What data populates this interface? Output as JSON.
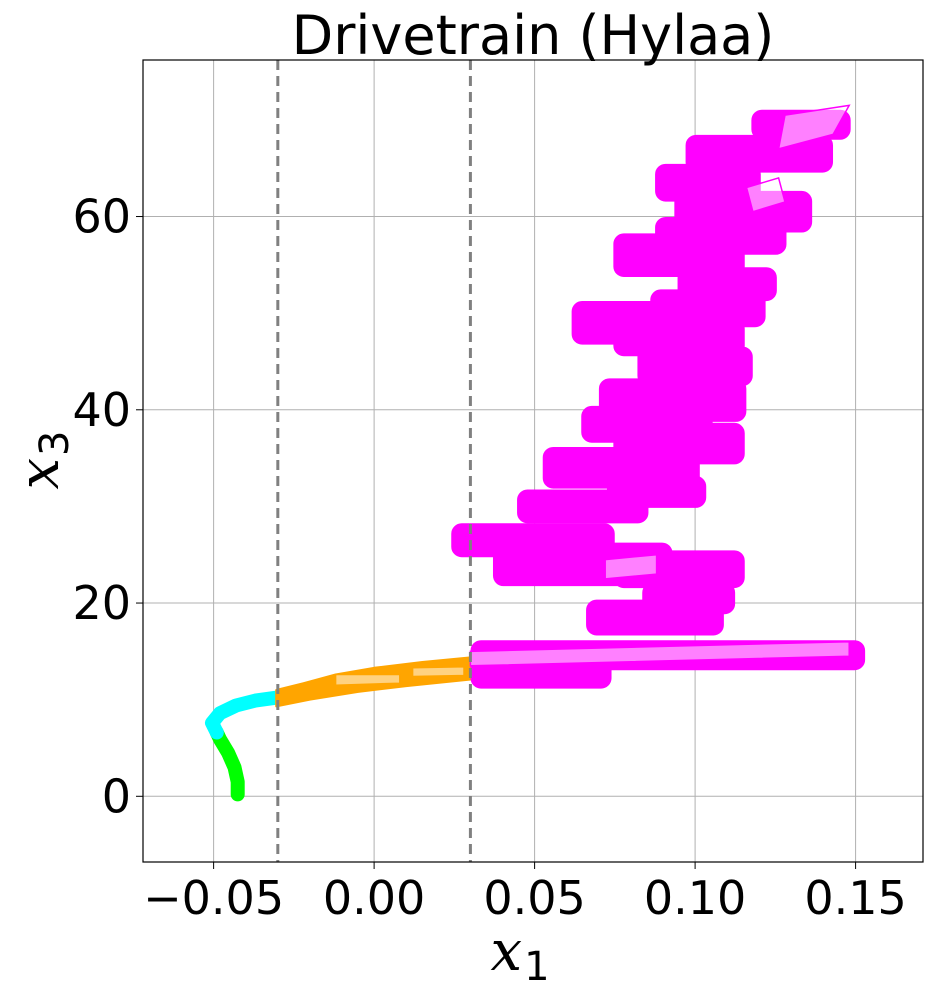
{
  "chart_data": {
    "type": "area",
    "title": "Drivetrain (Hylaa)",
    "xlabel": "x",
    "xlabel_sub": "1",
    "ylabel": "x",
    "ylabel_sub": "3",
    "xlim": [
      -0.072,
      0.171
    ],
    "ylim": [
      -6.8,
      76.2
    ],
    "grid": true,
    "x_ticks": [
      {
        "value": -0.05,
        "label": "−0.05"
      },
      {
        "value": 0.0,
        "label": "0.00"
      },
      {
        "value": 0.05,
        "label": "0.05"
      },
      {
        "value": 0.1,
        "label": "0.10"
      },
      {
        "value": 0.15,
        "label": "0.15"
      }
    ],
    "y_ticks": [
      {
        "value": 0,
        "label": "0"
      },
      {
        "value": 20,
        "label": "20"
      },
      {
        "value": 40,
        "label": "40"
      },
      {
        "value": 60,
        "label": "60"
      }
    ],
    "guard_lines": [
      -0.03,
      0.03
    ],
    "colors": {
      "mode1": "#00ff00",
      "mode2": "#00ffff",
      "mode3": "#ffa500",
      "mode4": "#ff00ff",
      "guard": "#808080"
    },
    "series": [
      {
        "mode": "mode1",
        "path": [
          [
            -0.0425,
            0.2
          ],
          [
            -0.0425,
            1.5
          ],
          [
            -0.0435,
            3.0
          ],
          [
            -0.0455,
            4.5
          ],
          [
            -0.048,
            5.9
          ],
          [
            -0.049,
            6.6
          ]
        ]
      },
      {
        "mode": "mode2",
        "path": [
          [
            -0.049,
            6.6
          ],
          [
            -0.0505,
            7.6
          ],
          [
            -0.048,
            8.6
          ],
          [
            -0.043,
            9.4
          ],
          [
            -0.037,
            9.9
          ],
          [
            -0.0305,
            10.2
          ]
        ]
      },
      {
        "mode": "mode3",
        "poly": [
          [
            -0.0305,
            9.3
          ],
          [
            -0.02,
            10.0
          ],
          [
            -0.005,
            10.8
          ],
          [
            0.01,
            11.4
          ],
          [
            0.0305,
            12.1
          ],
          [
            0.0305,
            14.4
          ],
          [
            0.015,
            13.9
          ],
          [
            0.0,
            13.3
          ],
          [
            -0.012,
            12.6
          ],
          [
            -0.022,
            11.7
          ],
          [
            -0.0305,
            11.0
          ]
        ],
        "highlights": [
          [
            [
              -0.012,
              11.5
            ],
            [
              0.008,
              11.7
            ],
            [
              0.008,
              12.6
            ],
            [
              -0.012,
              12.6
            ]
          ],
          [
            [
              0.012,
              12.4
            ],
            [
              0.028,
              12.5
            ],
            [
              0.028,
              13.4
            ],
            [
              0.012,
              13.3
            ]
          ]
        ]
      },
      {
        "mode": "mode4",
        "boxes": [
          {
            "x": 0.0915,
            "y": 14.6,
            "w": 0.122,
            "h": 2.8
          },
          {
            "x": 0.052,
            "y": 12.8,
            "w": 0.043,
            "h": 3.0
          },
          {
            "x": 0.0875,
            "y": 18.5,
            "w": 0.042,
            "h": 3.4
          },
          {
            "x": 0.098,
            "y": 20.5,
            "w": 0.028,
            "h": 3.0
          },
          {
            "x": 0.095,
            "y": 23.5,
            "w": 0.04,
            "h": 3.6
          },
          {
            "x": 0.065,
            "y": 24.0,
            "w": 0.055,
            "h": 4.2
          },
          {
            "x": 0.0495,
            "y": 26.5,
            "w": 0.05,
            "h": 3.2
          },
          {
            "x": 0.065,
            "y": 30.0,
            "w": 0.04,
            "h": 3.2
          },
          {
            "x": 0.088,
            "y": 31.5,
            "w": 0.03,
            "h": 3.0
          },
          {
            "x": 0.077,
            "y": 34.0,
            "w": 0.048,
            "h": 4.0
          },
          {
            "x": 0.095,
            "y": 36.5,
            "w": 0.04,
            "h": 4.0
          },
          {
            "x": 0.085,
            "y": 38.5,
            "w": 0.04,
            "h": 3.5
          },
          {
            "x": 0.093,
            "y": 41.0,
            "w": 0.045,
            "h": 4.2
          },
          {
            "x": 0.1,
            "y": 44.5,
            "w": 0.035,
            "h": 3.8
          },
          {
            "x": 0.095,
            "y": 47.5,
            "w": 0.04,
            "h": 3.6
          },
          {
            "x": 0.087,
            "y": 49.0,
            "w": 0.05,
            "h": 4.2
          },
          {
            "x": 0.104,
            "y": 50.5,
            "w": 0.035,
            "h": 3.6
          },
          {
            "x": 0.11,
            "y": 53.0,
            "w": 0.03,
            "h": 3.2
          },
          {
            "x": 0.095,
            "y": 56.0,
            "w": 0.04,
            "h": 4.2
          },
          {
            "x": 0.108,
            "y": 58.0,
            "w": 0.04,
            "h": 3.6
          },
          {
            "x": 0.115,
            "y": 60.5,
            "w": 0.042,
            "h": 4.0
          },
          {
            "x": 0.104,
            "y": 63.5,
            "w": 0.032,
            "h": 3.6
          },
          {
            "x": 0.12,
            "y": 66.5,
            "w": 0.045,
            "h": 3.6
          },
          {
            "x": 0.133,
            "y": 69.5,
            "w": 0.03,
            "h": 2.8
          }
        ],
        "highlights": [
          [
            [
              0.03,
              13.5
            ],
            [
              0.148,
              14.5
            ],
            [
              0.148,
              16.0
            ],
            [
              0.03,
              15.0
            ]
          ],
          [
            [
              0.126,
              67.0
            ],
            [
              0.143,
              68.5
            ],
            [
              0.148,
              71.5
            ],
            [
              0.128,
              70.5
            ]
          ],
          [
            [
              0.118,
              60.5
            ],
            [
              0.128,
              61.5
            ],
            [
              0.126,
              64.0
            ],
            [
              0.116,
              63.0
            ]
          ],
          [
            [
              0.072,
              22.5
            ],
            [
              0.088,
              23.0
            ],
            [
              0.088,
              25.0
            ],
            [
              0.072,
              24.5
            ]
          ]
        ]
      }
    ]
  }
}
